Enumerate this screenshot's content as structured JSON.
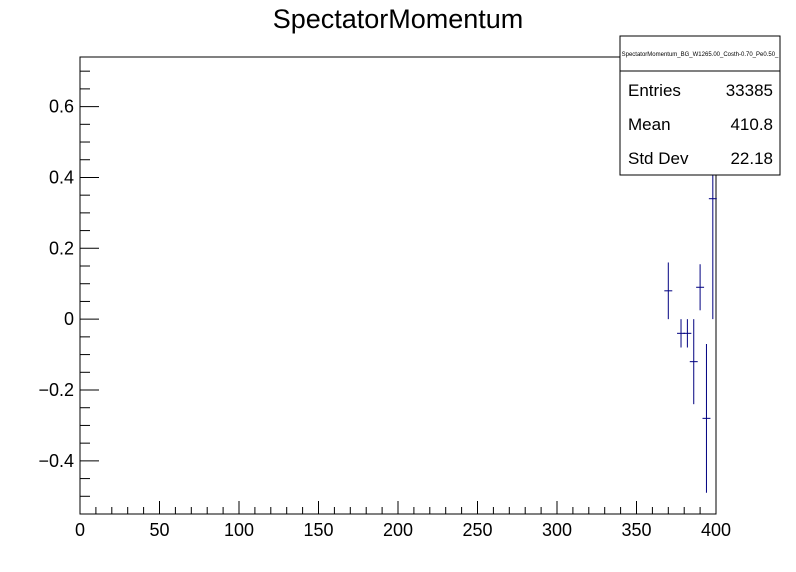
{
  "chart_data": {
    "type": "scatter",
    "title": "SpectatorMomentum",
    "xlabel": "",
    "ylabel": "",
    "xlim": [
      0,
      400
    ],
    "ylim": [
      -0.55,
      0.74
    ],
    "x_ticks": [
      0,
      50,
      100,
      150,
      200,
      250,
      300,
      350,
      400
    ],
    "x_tick_labels": [
      "0",
      "50",
      "100",
      "150",
      "200",
      "250",
      "300",
      "350",
      "400"
    ],
    "y_ticks": [
      -0.4,
      -0.2,
      0,
      0.2,
      0.4,
      0.6
    ],
    "y_tick_labels": [
      "−0.4",
      "−0.2",
      "0",
      "0.2",
      "0.4",
      "0.6"
    ],
    "grid": false,
    "series_color": "#000080",
    "points": [
      {
        "x": 370,
        "y": 0.08,
        "yerr_low": 0.08,
        "yerr_high": 0.08,
        "xerr": 2.5
      },
      {
        "x": 378,
        "y": -0.04,
        "yerr_low": 0.04,
        "yerr_high": 0.04,
        "xerr": 2.5
      },
      {
        "x": 382,
        "y": -0.04,
        "yerr_low": 0.04,
        "yerr_high": 0.04,
        "xerr": 2.5
      },
      {
        "x": 386,
        "y": -0.12,
        "yerr_low": 0.12,
        "yerr_high": 0.12,
        "xerr": 2.5
      },
      {
        "x": 390,
        "y": 0.09,
        "yerr_low": 0.065,
        "yerr_high": 0.065,
        "xerr": 2.5
      },
      {
        "x": 394,
        "y": -0.28,
        "yerr_low": 0.21,
        "yerr_high": 0.21,
        "xerr": 2.5
      },
      {
        "x": 398,
        "y": 0.34,
        "yerr_low": 0.34,
        "yerr_high": 0.34,
        "xerr": 2.5
      }
    ],
    "stats_box": {
      "name": "SpectatorMomentum_BG_W1265.00_Costh-0.70_Pe0.50_",
      "placement": "top-right",
      "rows": [
        {
          "label": "Entries",
          "value": "33385"
        },
        {
          "label": "Mean",
          "value": "410.8"
        },
        {
          "label": "Std Dev",
          "value": "22.18"
        }
      ]
    }
  }
}
